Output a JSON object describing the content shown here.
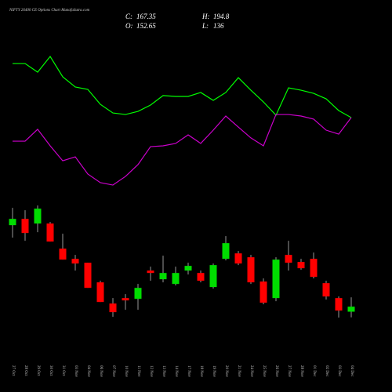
{
  "chart_data": {
    "type": "candlestick",
    "title": "NIFTY 26400 CE Options Chart MunafaSutra.com",
    "ohlc_labels": [
      {
        "label": "C:",
        "value": 167.35
      },
      {
        "label": "H:",
        "value": 194.8
      },
      {
        "label": "O:",
        "value": 152.65
      },
      {
        "label": "L:",
        "value": 136.0
      }
    ],
    "categories": [
      "27 Oct",
      "28 Oct",
      "29 Oct",
      "30 Oct",
      "31 Oct",
      "03 Nov",
      "04 Nov",
      "06 Nov",
      "07 Nov",
      "10 Nov",
      "11 Nov",
      "12 Nov",
      "13 Nov",
      "14 Nov",
      "17 Nov",
      "18 Nov",
      "19 Nov",
      "20 Nov",
      "21 Nov",
      "24 Nov",
      "25 Nov",
      "26 Nov",
      "27 Nov",
      "28 Nov",
      "01 Dec",
      "02 Dec",
      "03 Dec",
      "04 Dec"
    ],
    "open": [
      406.5,
      424.9,
      411.2,
      411.2,
      337.6,
      307.7,
      296.2,
      238.7,
      176.5,
      192.6,
      190.3,
      273.2,
      247.8,
      234.0,
      273.2,
      266.2,
      224.9,
      307.7,
      323.7,
      312.3,
      241.0,
      192.6,
      319.2,
      298.5,
      307.7,
      236.4,
      192.6,
      152.65
    ],
    "high": [
      457.2,
      450.2,
      464.1,
      415.7,
      381.3,
      319.2,
      296.2,
      243.3,
      192.6,
      204.2,
      234.0,
      284.6,
      316.9,
      284.6,
      296.2,
      273.2,
      293.9,
      374.4,
      330.6,
      319.2,
      250.2,
      312.3,
      360.5,
      307.7,
      326.1,
      243.3,
      197.2,
      194.8
    ],
    "low": [
      369.8,
      360.5,
      385.9,
      358.3,
      305.4,
      273.2,
      222.5,
      181.1,
      137.4,
      158.1,
      158.1,
      243.3,
      238.7,
      229.4,
      261.7,
      238.7,
      220.2,
      303.1,
      289.3,
      234.0,
      174.2,
      183.4,
      273.2,
      275.5,
      250.2,
      188.1,
      135.1,
      136.0
    ],
    "close": [
      424.9,
      383.5,
      454.9,
      358.3,
      305.4,
      293.9,
      222.5,
      181.1,
      151.3,
      185.7,
      222.5,
      266.2,
      266.2,
      266.2,
      287.0,
      243.3,
      289.3,
      353.7,
      293.9,
      238.7,
      178.9,
      305.4,
      296.2,
      280.1,
      254.7,
      197.2,
      155.8,
      167.35
    ],
    "up_color": "#00dd00",
    "down_color": "#ff0000",
    "ylim": [
      124,
      492
    ],
    "line_ylim": [
      0,
      100
    ],
    "lines": [
      {
        "color": "#00ff00",
        "values": [
          88.3,
          88.3,
          82.2,
          93.3,
          78.9,
          71.7,
          70.0,
          59.4,
          53.3,
          52.2,
          54.4,
          58.9,
          65.6,
          65.0,
          65.0,
          67.8,
          62.2,
          67.8,
          78.3,
          69.4,
          61.1,
          51.7,
          71.1,
          69.4,
          67.2,
          63.3,
          55.0,
          50.0
        ]
      },
      {
        "color": "#cc00cc",
        "values": [
          33.3,
          33.3,
          41.7,
          30.0,
          19.4,
          22.2,
          10.0,
          3.9,
          2.2,
          8.3,
          16.7,
          29.4,
          30.0,
          31.7,
          37.8,
          31.7,
          41.1,
          51.1,
          43.3,
          35.6,
          30.0,
          52.2,
          52.2,
          51.1,
          48.9,
          41.1,
          38.3,
          50.0
        ]
      }
    ]
  }
}
